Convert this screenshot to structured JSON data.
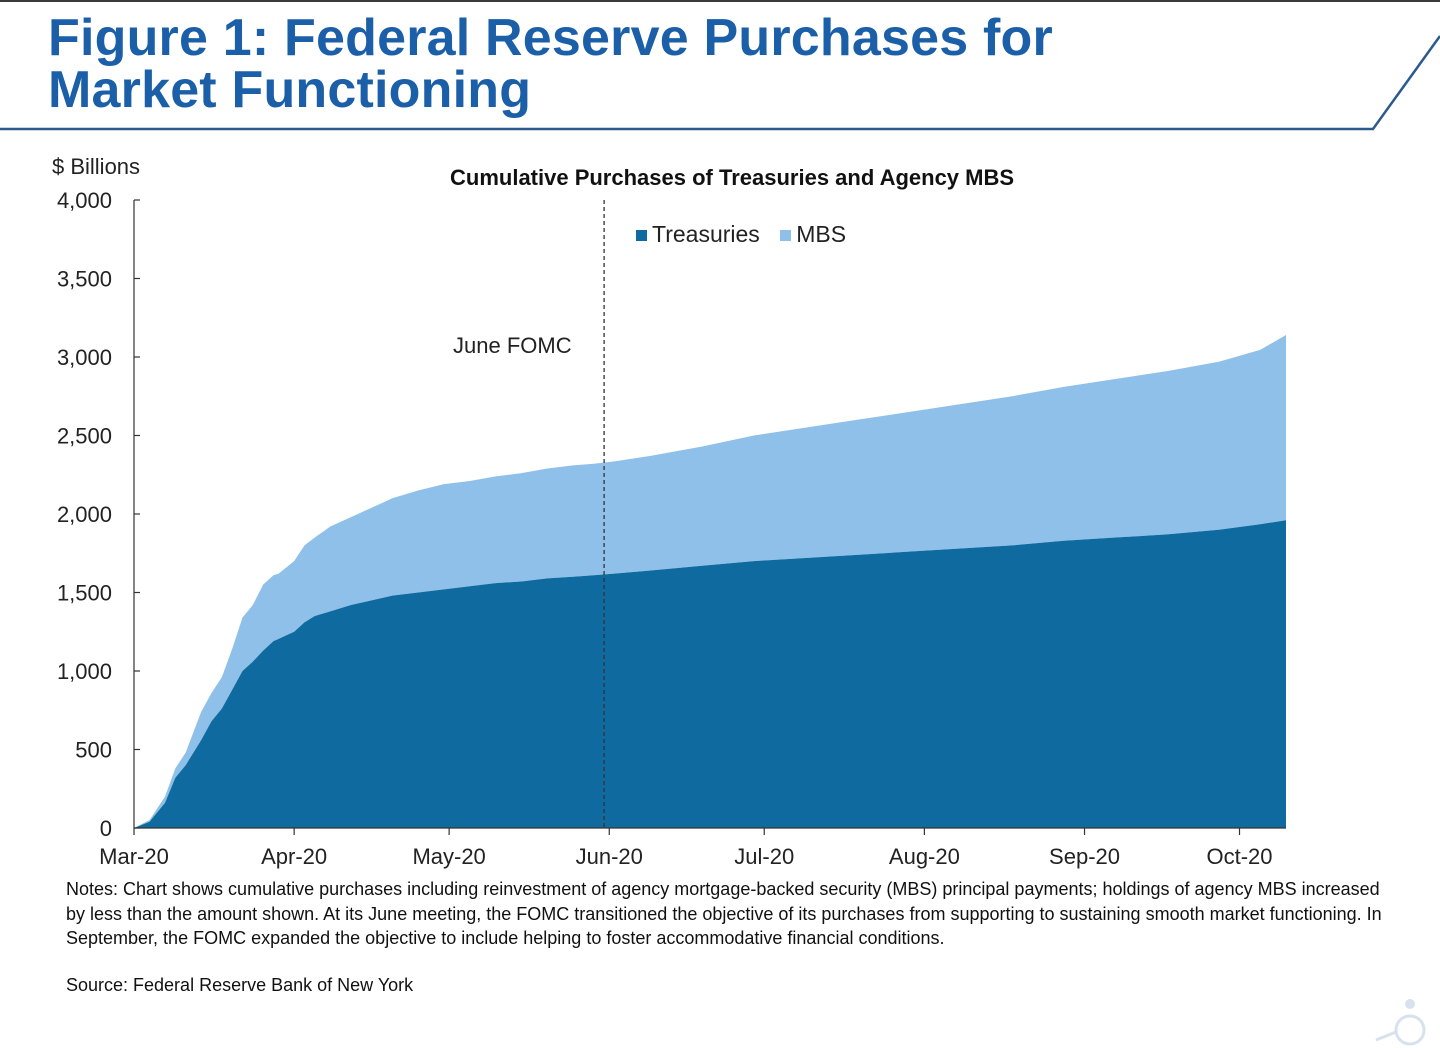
{
  "header": {
    "title_line1": "Figure 1: Federal Reserve Purchases for",
    "title_line2": "Market Functioning",
    "title_color": "#1b5fa8"
  },
  "chart_data": {
    "type": "area",
    "stacked": true,
    "title": "Cumulative Purchases of Treasuries and Agency MBS",
    "ylabel": "$ Billions",
    "ylim": [
      0,
      4000
    ],
    "yticks": [
      0,
      500,
      1000,
      1500,
      2000,
      2500,
      3000,
      3500,
      4000
    ],
    "ytick_labels": [
      "0",
      "500",
      "1,000",
      "1,500",
      "2,000",
      "2,500",
      "3,000",
      "3,500",
      "4,000"
    ],
    "xlabels": [
      "Mar-20",
      "Apr-20",
      "May-20",
      "Jun-20",
      "Jul-20",
      "Aug-20",
      "Sep-20",
      "Oct-20"
    ],
    "xrange_days": [
      0,
      223
    ],
    "xtick_days": [
      0,
      31,
      61,
      92,
      122,
      153,
      184,
      214
    ],
    "x_days": [
      0,
      3,
      6,
      8,
      10,
      13,
      15,
      17,
      19,
      21,
      23,
      25,
      27,
      28,
      31,
      33,
      35,
      38,
      42,
      46,
      50,
      55,
      60,
      65,
      70,
      75,
      80,
      85,
      89,
      93,
      100,
      110,
      120,
      130,
      140,
      150,
      160,
      170,
      180,
      190,
      200,
      210,
      218,
      223
    ],
    "series": [
      {
        "name": "Treasuries",
        "color": "#0f6b9f",
        "values": [
          0,
          40,
          160,
          320,
          400,
          560,
          680,
          760,
          880,
          1000,
          1060,
          1130,
          1190,
          1205,
          1250,
          1310,
          1350,
          1380,
          1420,
          1450,
          1480,
          1500,
          1520,
          1540,
          1560,
          1570,
          1590,
          1600,
          1610,
          1620,
          1640,
          1670,
          1700,
          1720,
          1740,
          1760,
          1780,
          1800,
          1830,
          1850,
          1870,
          1900,
          1935,
          1960
        ]
      },
      {
        "name": "MBS",
        "color": "#8ec0e9",
        "values": [
          0,
          10,
          40,
          60,
          80,
          180,
          180,
          200,
          260,
          340,
          360,
          420,
          420,
          415,
          450,
          490,
          500,
          540,
          560,
          590,
          620,
          650,
          670,
          670,
          680,
          690,
          700,
          710,
          710,
          715,
          730,
          760,
          800,
          830,
          860,
          890,
          920,
          950,
          980,
          1010,
          1040,
          1070,
          1110,
          1180
        ]
      }
    ],
    "annotations": [
      {
        "label": "June FOMC",
        "day": 91,
        "style": "dashed-vertical"
      }
    ]
  },
  "notes": "Notes: Chart shows cumulative purchases including reinvestment of agency mortgage-backed security (MBS) principal payments; holdings of agency MBS increased by less than the amount shown. At its June meeting, the FOMC transitioned the objective of its purchases from supporting to sustaining smooth market functioning. In September, the FOMC expanded the objective to include helping to foster accommodative financial conditions.",
  "source": "Source: Federal Reserve Bank of New York"
}
